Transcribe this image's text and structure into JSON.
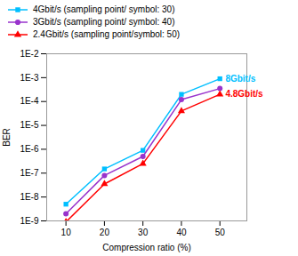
{
  "chart_data": {
    "type": "line",
    "x": [
      10,
      20,
      30,
      40,
      50
    ],
    "series": [
      {
        "name": "4Gbit/s (sampling point/ symbol: 30)",
        "color": "#00BFFF",
        "marker": "square",
        "values": [
          5e-09,
          1.5e-07,
          9e-07,
          0.0002,
          0.0009
        ]
      },
      {
        "name": "3Gbit/s (sampling point/ symbol: 40)",
        "color": "#9933CC",
        "marker": "circle",
        "values": [
          2e-09,
          8e-08,
          5e-07,
          0.00012,
          0.00035
        ]
      },
      {
        "name": "2.4Gbit/s (sampling point/symbol: 50)",
        "color": "#FF0000",
        "marker": "triangle",
        "values": [
          9e-10,
          3.5e-08,
          2.5e-07,
          4e-05,
          0.0002
        ]
      }
    ],
    "xlabel": "Compression ratio (%)",
    "ylabel": "BER",
    "xlim": [
      5,
      57
    ],
    "ylim": [
      1e-09,
      0.01
    ],
    "xticks": [
      10,
      20,
      30,
      40,
      50
    ],
    "yticks": [
      {
        "value": 1e-09,
        "label": "1E-9"
      },
      {
        "value": 1e-08,
        "label": "1E-8"
      },
      {
        "value": 1e-07,
        "label": "1E-7"
      },
      {
        "value": 1e-06,
        "label": "1E-6"
      },
      {
        "value": 1e-05,
        "label": "1E-5"
      },
      {
        "value": 0.0001,
        "label": "1E-4"
      },
      {
        "value": 0.001,
        "label": "1E-3"
      },
      {
        "value": 0.01,
        "label": "1E-2"
      }
    ],
    "log": "y",
    "grid": false,
    "legend": "top",
    "annotations": [
      {
        "text": "8Gbit/s",
        "x": 50.5,
        "y": 0.0009,
        "color": "#00BFFF"
      },
      {
        "text": "4.8Gbit/s",
        "x": 50.5,
        "y": 0.0002,
        "color": "#FF0000"
      }
    ]
  }
}
